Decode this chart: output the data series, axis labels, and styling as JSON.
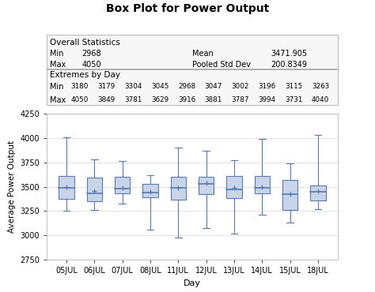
{
  "title": "Box Plot for Power Output",
  "xlabel": "Day",
  "ylabel": "Average Power Output",
  "days": [
    "05JUL",
    "06JUL",
    "07JUL",
    "08JUL",
    "11JUL",
    "12JUL",
    "13JUL",
    "14JUL",
    "15JUL",
    "18JUL"
  ],
  "overall_stats": {
    "Min": 2968,
    "Max": 4050,
    "Mean": 3471.905,
    "Pooled_Std_Dev": 200.8349
  },
  "extremes_by_day": {
    "Min": [
      3180,
      3179,
      3304,
      3045,
      2968,
      3047,
      3002,
      3196,
      3115,
      3263
    ],
    "Max": [
      4050,
      3849,
      3781,
      3629,
      3916,
      3881,
      3787,
      3994,
      3731,
      4040
    ]
  },
  "box_data": [
    {
      "day": "05JUL",
      "q1": 3375,
      "median": 3490,
      "q3": 3610,
      "mean": 3500,
      "whisker_low": 3250,
      "whisker_high": 4010
    },
    {
      "day": "06JUL",
      "q1": 3355,
      "median": 3430,
      "q3": 3590,
      "mean": 3460,
      "whisker_low": 3260,
      "whisker_high": 3780
    },
    {
      "day": "07JUL",
      "q1": 3430,
      "median": 3480,
      "q3": 3600,
      "mean": 3490,
      "whisker_low": 3330,
      "whisker_high": 3760
    },
    {
      "day": "08JUL",
      "q1": 3390,
      "median": 3440,
      "q3": 3530,
      "mean": 3450,
      "whisker_low": 3060,
      "whisker_high": 3620
    },
    {
      "day": "11JUL",
      "q1": 3370,
      "median": 3490,
      "q3": 3600,
      "mean": 3490,
      "whisker_low": 2975,
      "whisker_high": 3900
    },
    {
      "day": "12JUL",
      "q1": 3420,
      "median": 3530,
      "q3": 3600,
      "mean": 3540,
      "whisker_low": 3080,
      "whisker_high": 3870
    },
    {
      "day": "13JUL",
      "q1": 3380,
      "median": 3470,
      "q3": 3610,
      "mean": 3490,
      "whisker_low": 3020,
      "whisker_high": 3770
    },
    {
      "day": "14JUL",
      "q1": 3430,
      "median": 3490,
      "q3": 3610,
      "mean": 3500,
      "whisker_low": 3210,
      "whisker_high": 3990
    },
    {
      "day": "15JUL",
      "q1": 3260,
      "median": 3420,
      "q3": 3570,
      "mean": 3420,
      "whisker_low": 3130,
      "whisker_high": 3740
    },
    {
      "day": "18JUL",
      "q1": 3360,
      "median": 3450,
      "q3": 3510,
      "mean": 3460,
      "whisker_low": 3270,
      "whisker_high": 4030
    }
  ],
  "box_facecolor": "#c8d4e8",
  "box_edgecolor": "#5a7ab5",
  "median_color": "#5a7ab5",
  "whisker_color": "#5a7ab5",
  "mean_color": "#5a7ab5",
  "ylim": [
    2750,
    4250
  ],
  "yticks": [
    2750,
    3000,
    3250,
    3500,
    3750,
    4000,
    4250
  ],
  "bg_color": "#ffffff",
  "grid_color": "#cccccc",
  "table_line_color": "#aaaaaa"
}
